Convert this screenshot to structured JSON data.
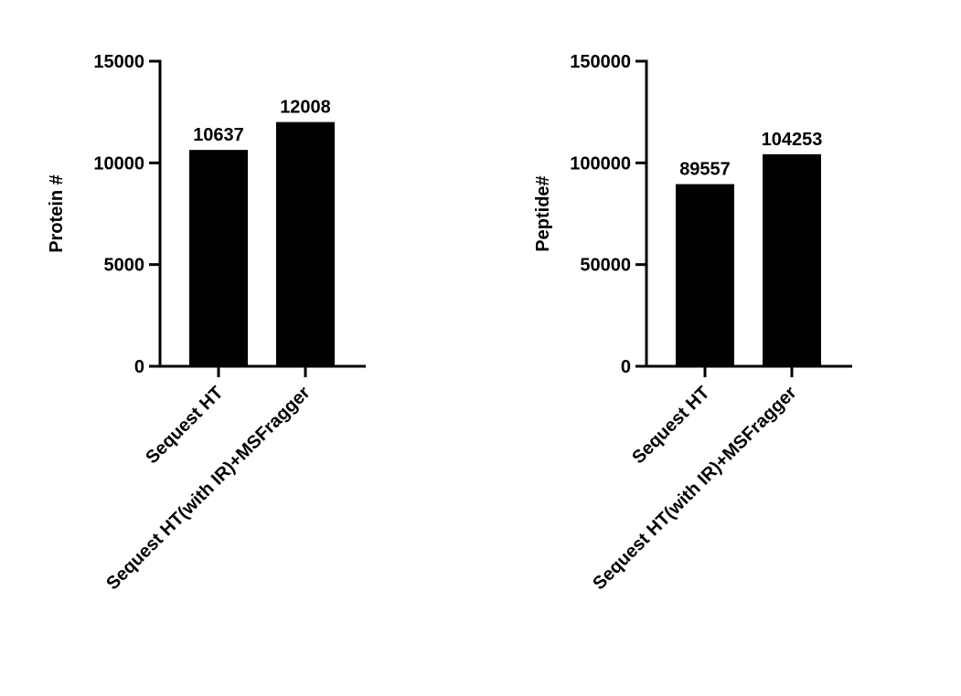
{
  "chart_data": [
    {
      "type": "bar",
      "ylabel": "Protein #",
      "categories": [
        "Sequest HT",
        "Sequest HT(with IR)+MSFragger"
      ],
      "values": [
        10637,
        12008
      ],
      "color": "#000000",
      "ylim": [
        0,
        15000
      ],
      "yticks": [
        0,
        5000,
        10000,
        15000
      ]
    },
    {
      "type": "bar",
      "ylabel": "Peptide#",
      "categories": [
        "Sequest HT",
        "Sequest HT(with IR)+MSFragger"
      ],
      "values": [
        89557,
        104253
      ],
      "color": "#000000",
      "ylim": [
        0,
        150000
      ],
      "yticks": [
        0,
        50000,
        100000,
        150000
      ]
    }
  ]
}
